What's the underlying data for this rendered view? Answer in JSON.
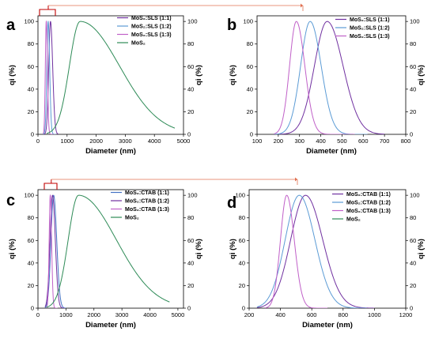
{
  "chart_data": [
    {
      "panel": "a",
      "type": "line",
      "xlabel": "Diameter (nm)",
      "ylabel_left": "qi (%)",
      "ylabel_right": "qi (%)",
      "xlim": [
        0,
        5000
      ],
      "ylim": [
        0,
        105
      ],
      "xticks": [
        "0",
        "1000",
        "2000",
        "3000",
        "4000",
        "5000"
      ],
      "yticks": [
        "0",
        "20",
        "40",
        "60",
        "80",
        "100"
      ],
      "legend_position": "top-right",
      "series": [
        {
          "name": "MoS₂:SLS (1:1)",
          "color": "#7030a0",
          "peak": 430,
          "sigma_left": 60,
          "sigma_right": 75,
          "x_range": [
            200,
            700
          ]
        },
        {
          "name": "MoS₂:SLS (1:2)",
          "color": "#5b9bd5",
          "peak": 350,
          "sigma_left": 45,
          "sigma_right": 52,
          "x_range": [
            180,
            620
          ]
        },
        {
          "name": "MoS₂:SLS (1:3)",
          "color": "#c060c8",
          "peak": 285,
          "sigma_left": 32,
          "sigma_right": 40,
          "x_range": [
            180,
            560
          ]
        },
        {
          "name": "MoS₂",
          "color": "#2e8b57",
          "peak": 1450,
          "sigma_left": 370,
          "sigma_right": 1350,
          "x_range": [
            300,
            4700
          ]
        }
      ]
    },
    {
      "panel": "b",
      "type": "line",
      "xlabel": "Diameter (nm)",
      "ylabel_left": "qi (%)",
      "ylabel_right": "qi (%)",
      "xlim": [
        100,
        800
      ],
      "ylim": [
        0,
        105
      ],
      "xticks": [
        "100",
        "200",
        "300",
        "400",
        "500",
        "600",
        "700",
        "800"
      ],
      "yticks": [
        "0",
        "20",
        "40",
        "60",
        "80",
        "100"
      ],
      "legend_position": "top-right",
      "series": [
        {
          "name": "MoS₂:SLS (1:1)",
          "color": "#7030a0",
          "peak": 430,
          "sigma_left": 60,
          "sigma_right": 75,
          "x_range": [
            200,
            700
          ]
        },
        {
          "name": "MoS₂:SLS (1:2)",
          "color": "#5b9bd5",
          "peak": 350,
          "sigma_left": 45,
          "sigma_right": 52,
          "x_range": [
            180,
            620
          ]
        },
        {
          "name": "MoS₂:SLS (1:3)",
          "color": "#c060c8",
          "peak": 285,
          "sigma_left": 32,
          "sigma_right": 40,
          "x_range": [
            180,
            560
          ]
        }
      ]
    },
    {
      "panel": "c",
      "type": "line",
      "xlabel": "Diameter (nm)",
      "ylabel_left": "qi (%)",
      "ylabel_right": "qi (%)",
      "xlim": [
        0,
        5200
      ],
      "ylim": [
        0,
        105
      ],
      "xticks": [
        "0",
        "1000",
        "2000",
        "3000",
        "4000",
        "5000"
      ],
      "yticks": [
        "0",
        "20",
        "40",
        "60",
        "80",
        "100"
      ],
      "legend_position": "top-right",
      "series": [
        {
          "name": "MoS₂:CTAB (1:1)",
          "color": "#4472c4",
          "peak": 560,
          "sigma_left": 95,
          "sigma_right": 110,
          "x_range": [
            250,
            1000
          ]
        },
        {
          "name": "MoS₂:CTAB (1:2)",
          "color": "#7030a0",
          "peak": 520,
          "sigma_left": 90,
          "sigma_right": 100,
          "x_range": [
            250,
            950
          ]
        },
        {
          "name": "MoS₂:CTAB (1:3)",
          "color": "#c060c8",
          "peak": 440,
          "sigma_left": 40,
          "sigma_right": 48,
          "x_range": [
            300,
            700
          ]
        },
        {
          "name": "MoS₂",
          "color": "#2e8b57",
          "peak": 1450,
          "sigma_left": 370,
          "sigma_right": 1350,
          "x_range": [
            300,
            4700
          ]
        }
      ]
    },
    {
      "panel": "d",
      "type": "line",
      "xlabel": "Diameter (nm)",
      "ylabel_left": "qi (%)",
      "ylabel_right": "qi (%)",
      "xlim": [
        200,
        1200
      ],
      "ylim": [
        0,
        105
      ],
      "xticks": [
        "200",
        "400",
        "600",
        "800",
        "1000",
        "1200"
      ],
      "yticks": [
        "0",
        "20",
        "40",
        "60",
        "80",
        "100"
      ],
      "legend_position": "top-right",
      "series": [
        {
          "name": "MoS₂:CTAB (1:1)",
          "color": "#7030a0",
          "peak": 560,
          "sigma_left": 95,
          "sigma_right": 110,
          "x_range": [
            250,
            1000
          ]
        },
        {
          "name": "MoS₂:CTAB (1:2)",
          "color": "#5b9bd5",
          "peak": 520,
          "sigma_left": 90,
          "sigma_right": 100,
          "x_range": [
            250,
            950
          ]
        },
        {
          "name": "MoS₂:CTAB (1:3)",
          "color": "#c060c8",
          "peak": 440,
          "sigma_left": 40,
          "sigma_right": 48,
          "x_range": [
            300,
            700
          ]
        },
        {
          "name": "MoS₂",
          "color": "#2e8b57",
          "peak": null,
          "x_range": []
        }
      ]
    }
  ],
  "colors": {
    "zoom_bracket": "#c00000",
    "zoom_arrow": "#e07050"
  }
}
